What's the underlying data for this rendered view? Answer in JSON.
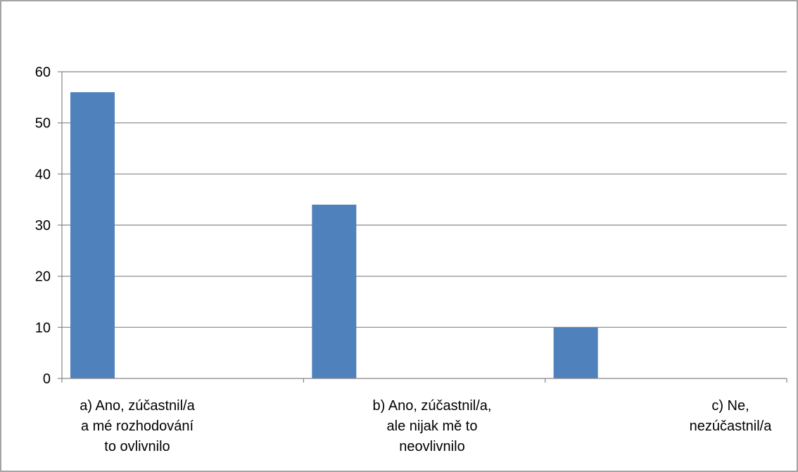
{
  "chart_data": {
    "type": "bar",
    "categories": [
      [
        "a) Ano, zúčastnil/a",
        "a mé rozhodování",
        "to ovlivnilo"
      ],
      [
        "b) Ano, zúčastnil/a,",
        "ale nijak mě to",
        "neovlivnilo"
      ],
      [
        "c) Ne,",
        "nezúčastnil/a"
      ]
    ],
    "values": [
      56,
      34,
      10
    ],
    "ylim": [
      0,
      60
    ],
    "yticks": [
      0,
      10,
      20,
      30,
      40,
      50,
      60
    ],
    "title": "",
    "xlabel": "",
    "ylabel": "",
    "grid": true,
    "legend": "none",
    "colors": {
      "bar": "#4f81bd",
      "gridline": "#868686",
      "frame": "#868686",
      "text": "#000000"
    }
  }
}
